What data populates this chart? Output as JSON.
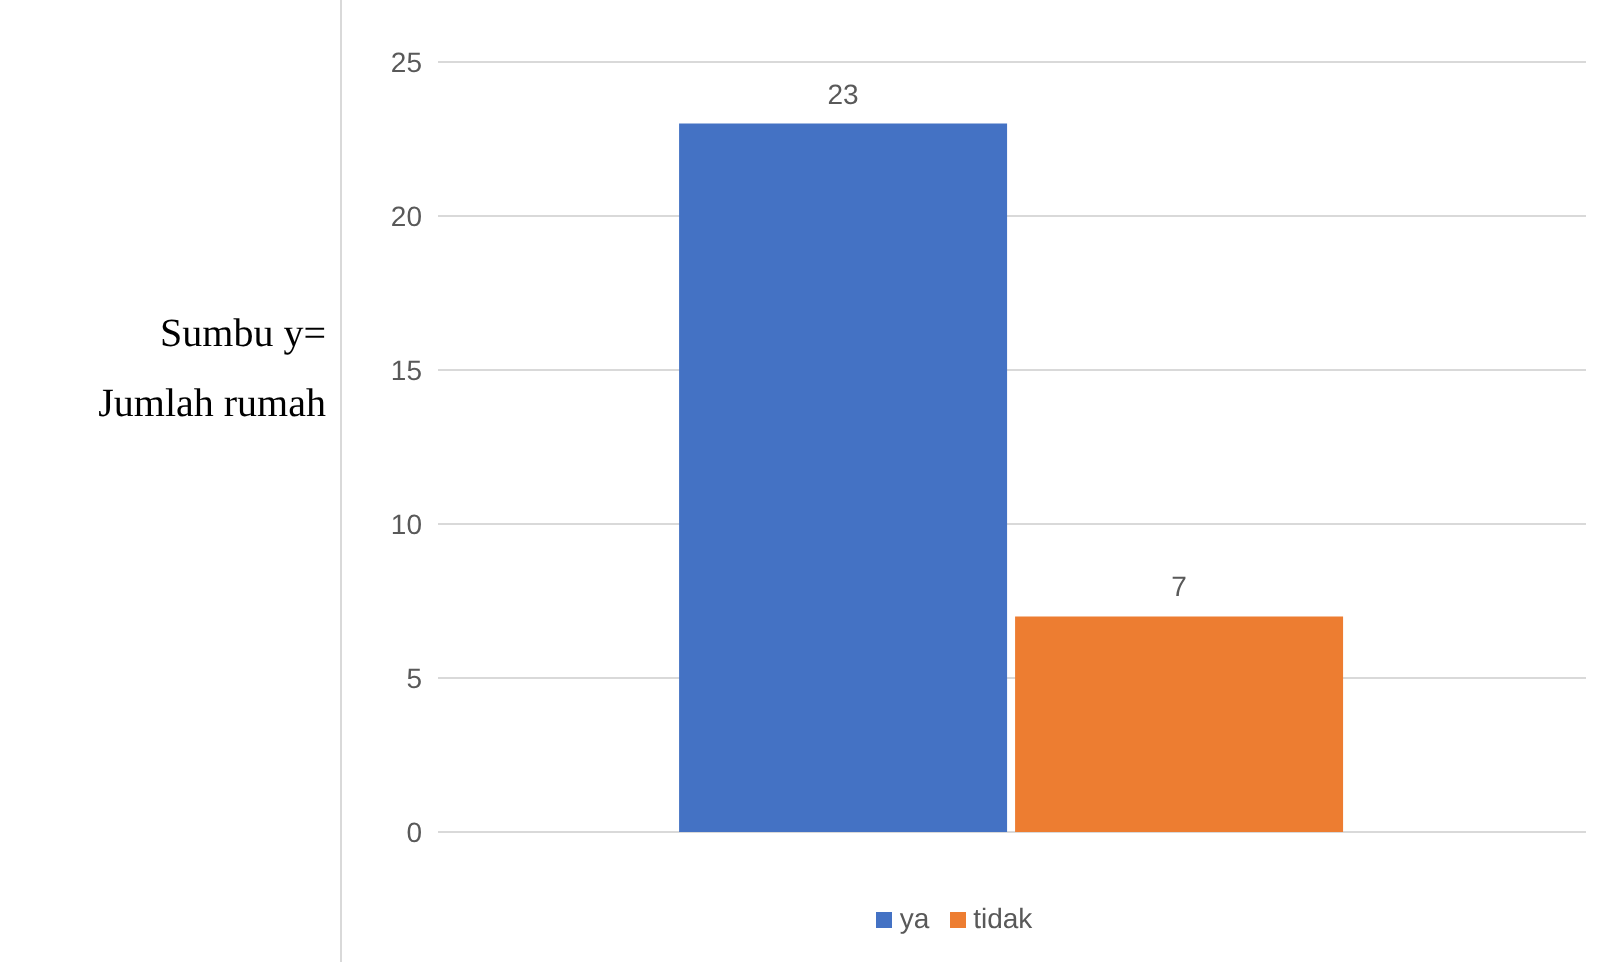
{
  "chart_data": {
    "type": "bar",
    "ylabel": "Sumbu y= Jumlah rumah",
    "categories": [
      null
    ],
    "series": [
      {
        "name": "ya",
        "color": "#4472c4",
        "values": [
          23
        ]
      },
      {
        "name": "tidak",
        "color": "#ed7d31",
        "values": [
          7
        ]
      }
    ],
    "ylim": [
      0,
      25
    ],
    "yticks": [
      0,
      5,
      10,
      15,
      20,
      25
    ],
    "grid": "y",
    "legend": "bottom",
    "data_labels": true
  }
}
